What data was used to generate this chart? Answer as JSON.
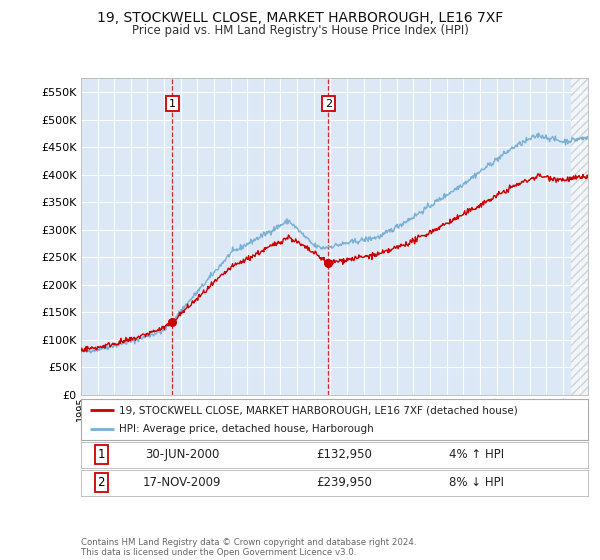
{
  "title": "19, STOCKWELL CLOSE, MARKET HARBOROUGH, LE16 7XF",
  "subtitle": "Price paid vs. HM Land Registry's House Price Index (HPI)",
  "ylim": [
    0,
    575000
  ],
  "yticks": [
    0,
    50000,
    100000,
    150000,
    200000,
    250000,
    300000,
    350000,
    400000,
    450000,
    500000,
    550000
  ],
  "ytick_labels": [
    "£0",
    "£50K",
    "£100K",
    "£150K",
    "£200K",
    "£250K",
    "£300K",
    "£350K",
    "£400K",
    "£450K",
    "£500K",
    "£550K"
  ],
  "plot_bg": "#dce8f5",
  "grid_color": "#ffffff",
  "line1_color": "#cc0000",
  "line2_color": "#7ab0d4",
  "sale1_date": 2000.5,
  "sale1_price": 132950,
  "sale1_label": "1",
  "sale2_date": 2009.88,
  "sale2_price": 239950,
  "sale2_label": "2",
  "legend_line1": "19, STOCKWELL CLOSE, MARKET HARBOROUGH, LE16 7XF (detached house)",
  "legend_line2": "HPI: Average price, detached house, Harborough",
  "table_row1_num": "1",
  "table_row1_date": "30-JUN-2000",
  "table_row1_price": "£132,950",
  "table_row1_hpi": "4% ↑ HPI",
  "table_row2_num": "2",
  "table_row2_date": "17-NOV-2009",
  "table_row2_price": "£239,950",
  "table_row2_hpi": "8% ↓ HPI",
  "footer": "Contains HM Land Registry data © Crown copyright and database right 2024.\nThis data is licensed under the Open Government Licence v3.0.",
  "xmin": 1995,
  "xmax": 2025.5,
  "hatch_start": 2024.5
}
